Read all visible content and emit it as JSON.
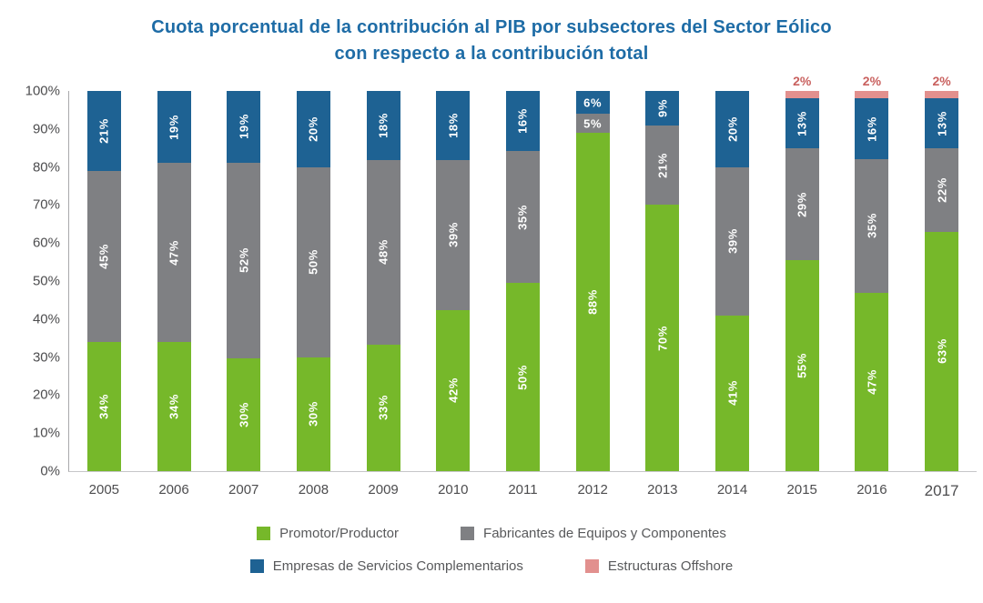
{
  "title": {
    "line1": "Cuota porcentual de la contribución al PIB por subsectores del Sector Eólico",
    "line2": "con respecto a la contribución total"
  },
  "colors": {
    "title_text": "#1e6ca6",
    "axis_text": "#4d4d4f",
    "axis_line": "#a9a9ac",
    "baseline": "#c6c6c8",
    "bar_value_label": "#ffffff",
    "offshore_value_label": "#c9615f",
    "legend_text": "#58595b"
  },
  "chart_data": {
    "type": "bar",
    "stacked": true,
    "title": "Cuota porcentual de la contribución al PIB por subsectores del Sector Eólico con respecto a la contribución total",
    "categories": [
      "2005",
      "2006",
      "2007",
      "2008",
      "2009",
      "2010",
      "2011",
      "2012",
      "2013",
      "2014",
      "2015",
      "2016",
      "2017"
    ],
    "series": [
      {
        "name": "Promotor/Productor",
        "color": "#76b82a",
        "values": [
          34,
          34,
          30,
          30,
          33,
          42,
          50,
          88,
          70,
          41,
          55,
          47,
          63
        ],
        "label_outside": false
      },
      {
        "name": "Fabricantes de Equipos y Componentes",
        "color": "#7f8083",
        "values": [
          45,
          47,
          52,
          50,
          48,
          39,
          35,
          5,
          21,
          39,
          29,
          35,
          22
        ],
        "label_outside": false
      },
      {
        "name": "Empresas de Servicios Complementarios",
        "color": "#1e6293",
        "values": [
          21,
          19,
          19,
          20,
          18,
          18,
          16,
          6,
          9,
          20,
          13,
          16,
          13
        ],
        "label_outside": false
      },
      {
        "name": "Estructuras Offshore",
        "color": "#e2908e",
        "values": [
          0,
          0,
          0,
          0,
          0,
          0,
          0,
          0,
          0,
          0,
          2,
          2,
          2
        ],
        "label_outside": true
      }
    ],
    "value_suffix": "%",
    "ylim": [
      0,
      100
    ],
    "y_ticks": [
      "100%",
      "90%",
      "80%",
      "70%",
      "60%",
      "50%",
      "40%",
      "30%",
      "20%",
      "10%",
      "0%"
    ],
    "grid": false,
    "legend_position": "bottom",
    "horizontal_label_max_value": 6
  },
  "legend": {
    "rows": [
      [
        0,
        1
      ],
      [
        2,
        3
      ]
    ]
  }
}
